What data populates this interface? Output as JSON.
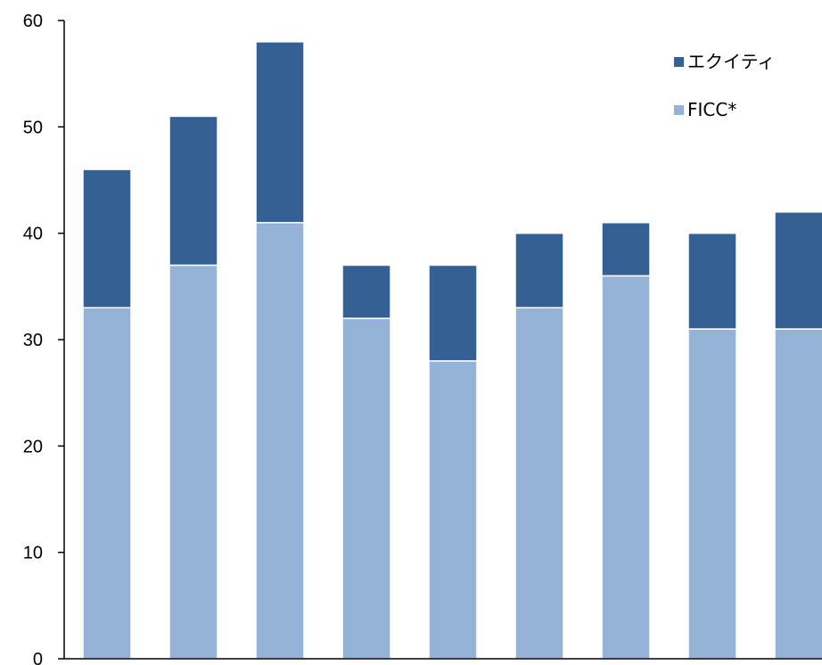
{
  "chart_data": {
    "type": "bar",
    "stacked": true,
    "categories": [
      "",
      "",
      "",
      "",
      "",
      "",
      "",
      "",
      ""
    ],
    "series": [
      {
        "name": "FICC*",
        "values": [
          33,
          37,
          41,
          32,
          28,
          33,
          36,
          31,
          31
        ],
        "color": "#95b3d7"
      },
      {
        "name": "エクイティ",
        "values": [
          13,
          14,
          17,
          5,
          9,
          7,
          5,
          9,
          11
        ],
        "color": "#356094"
      }
    ],
    "title": "",
    "xlabel": "",
    "ylabel": "",
    "ylim": [
      0,
      60
    ],
    "yticks": [
      0,
      10,
      20,
      30,
      40,
      50,
      60
    ],
    "grid": false,
    "legend_position": "top-right",
    "legend_order": [
      "エクイティ",
      "FICC*"
    ]
  }
}
